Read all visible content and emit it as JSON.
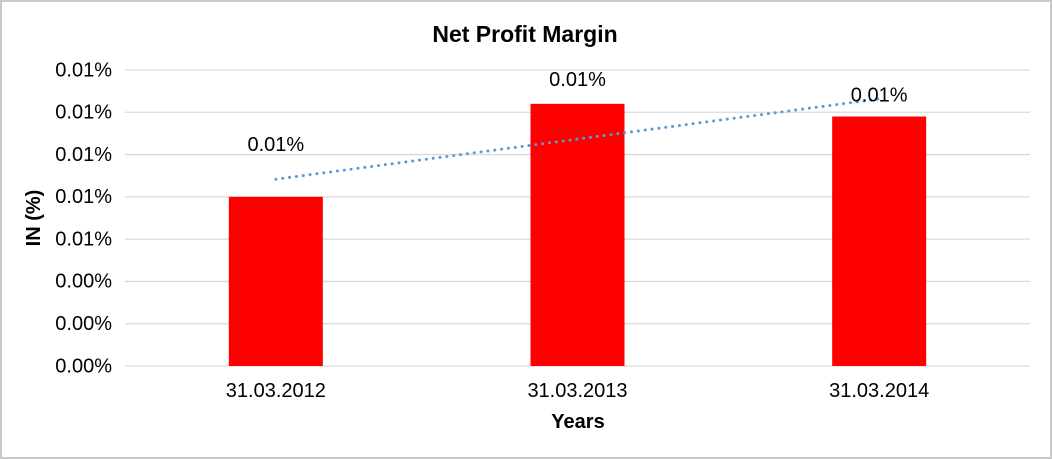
{
  "chart_data": {
    "type": "bar",
    "title": "Net Profit Margin",
    "xlabel": "Years",
    "ylabel": "IN (%)",
    "categories": [
      "31.03.2012",
      "31.03.2013",
      "31.03.2014"
    ],
    "series": [
      {
        "name": "Net Profit Margin",
        "color": "#FF0000",
        "values": [
          0.008,
          0.0124,
          0.0118
        ]
      }
    ],
    "data_labels": [
      "0.01%",
      "0.01%",
      "0.01%"
    ],
    "y_tick_labels_top_to_bottom": [
      "0.01%",
      "0.01%",
      "0.01%",
      "0.01%",
      "0.01%",
      "0.00%",
      "0.00%",
      "0.00%"
    ],
    "ylim": [
      0,
      0.014
    ],
    "y_tick_step": 0.002,
    "units": "percent",
    "grid": true,
    "legend": "none",
    "trendline": {
      "type": "linear",
      "style": "dotted",
      "color": "#5B9BD5"
    },
    "colors": {
      "bar": "#FF0000",
      "trendline": "#5B9BD5",
      "gridline": "#D9D9D9",
      "axis_line": "#D9D9D9",
      "text": "#000000",
      "frame_border": "#C9C9C9",
      "background": "#FFFFFF"
    }
  }
}
